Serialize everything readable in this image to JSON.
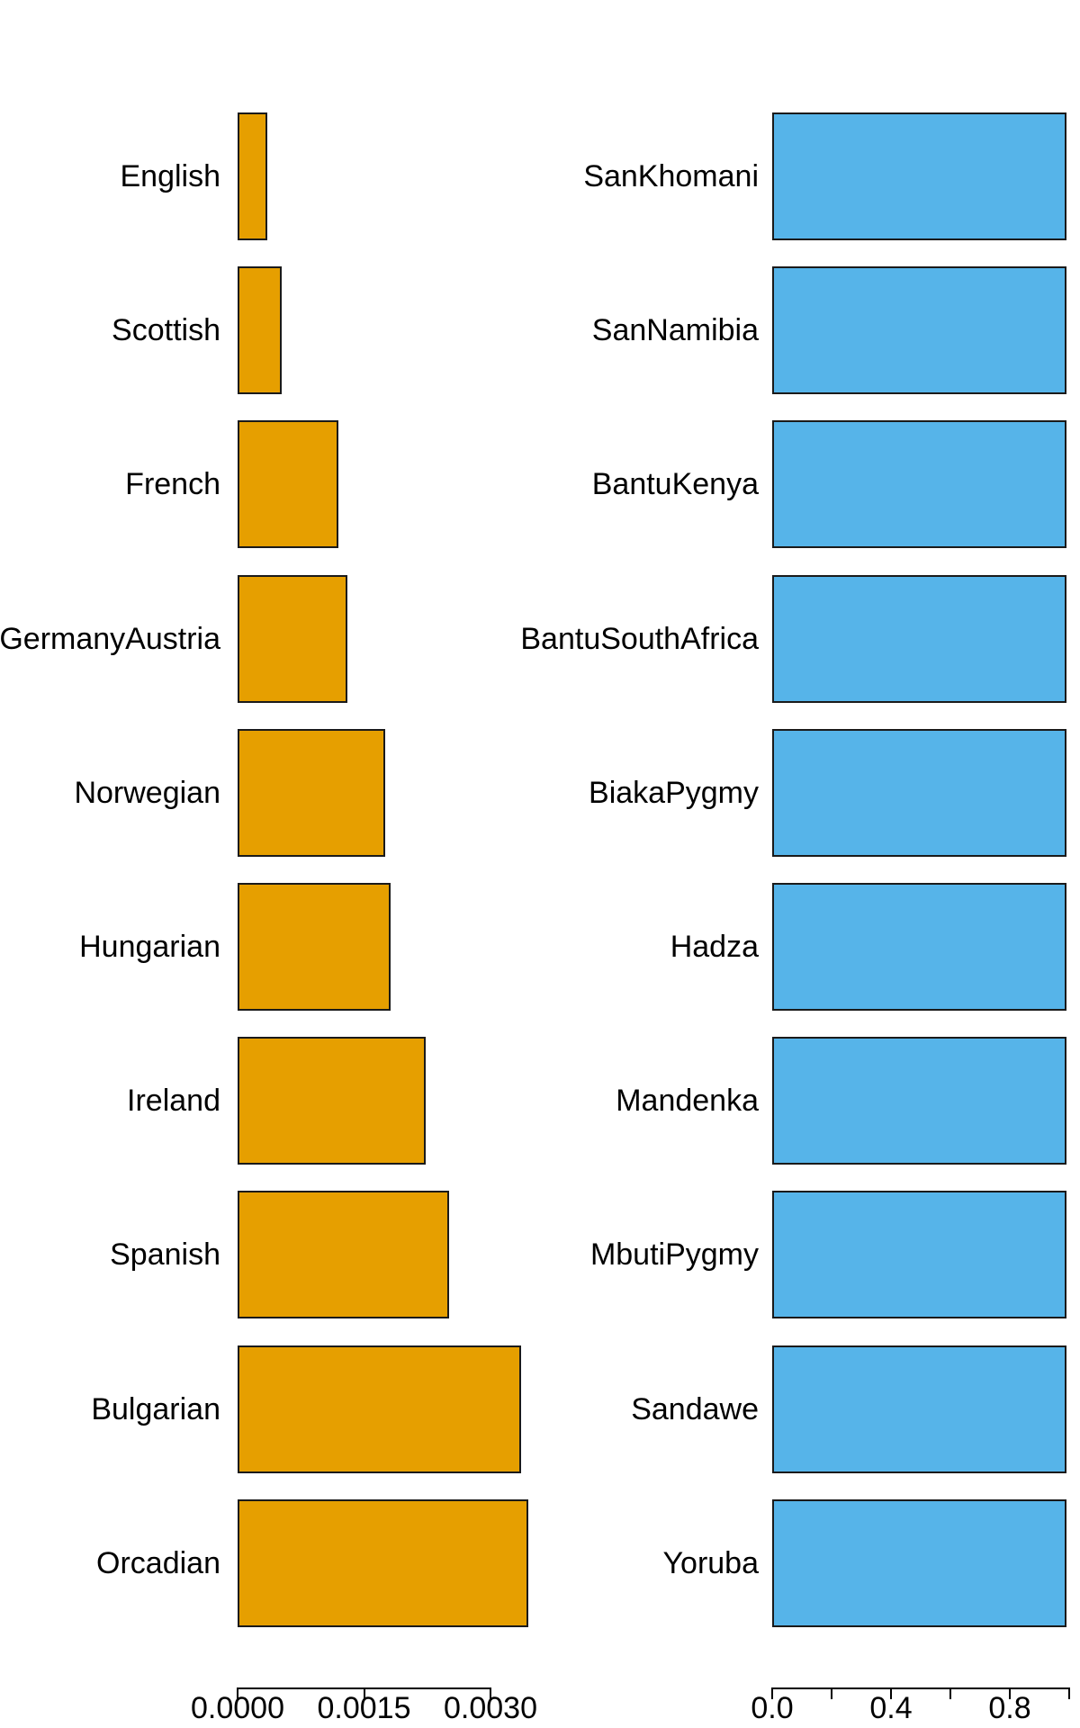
{
  "figure": {
    "background_color": "#ffffff",
    "title": ""
  },
  "chart_data": [
    {
      "type": "bar",
      "orientation": "horizontal",
      "panel": "left",
      "title": "",
      "xlabel": "",
      "ylabel": "",
      "bar_color": "#E69F00",
      "bar_border_color": "#1a1a1a",
      "grid": false,
      "legend": null,
      "categories": [
        "English",
        "Scottish",
        "French",
        "GermanyAustria",
        "Norwegian",
        "Hungarian",
        "Ireland",
        "Spanish",
        "Bulgarian",
        "Orcadian"
      ],
      "values": [
        0.00035,
        0.00052,
        0.0012,
        0.0013,
        0.00175,
        0.00181,
        0.00223,
        0.00251,
        0.00336,
        0.00345
      ],
      "axis": {
        "range": [
          0,
          0.003
        ],
        "ticks": [
          0,
          0.0015,
          0.003
        ],
        "tick_labels": [
          "0.0000",
          "0.0015",
          "0.0030"
        ]
      }
    },
    {
      "type": "bar",
      "orientation": "horizontal",
      "panel": "right",
      "title": "",
      "xlabel": "",
      "ylabel": "",
      "bar_color": "#56B4E9",
      "bar_border_color": "#1a1a1a",
      "grid": false,
      "legend": null,
      "categories": [
        "SanKhomani",
        "SanNamibia",
        "BantuKenya",
        "BantuSouthAfrica",
        "BiakaPygmy",
        "Hadza",
        "Mandenka",
        "MbutiPygmy",
        "Sandawe",
        "Yoruba"
      ],
      "values": [
        0.99,
        0.99,
        0.99,
        0.99,
        0.99,
        0.99,
        0.99,
        0.99,
        0.99,
        0.99
      ],
      "axis": {
        "range": [
          0,
          1.0
        ],
        "ticks": [
          0,
          0.2,
          0.4,
          0.6,
          0.8,
          1.0
        ],
        "tick_labels": [
          "0.0",
          "",
          "0.4",
          "",
          "0.8",
          ""
        ]
      }
    }
  ]
}
